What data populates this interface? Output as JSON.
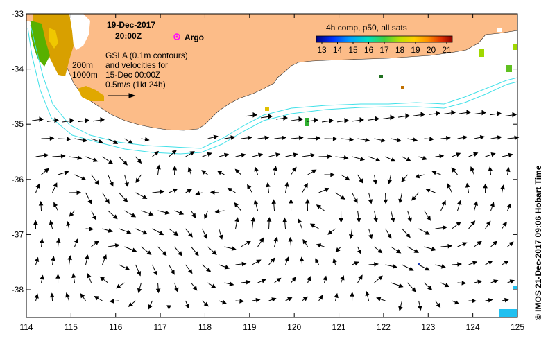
{
  "map": {
    "date": "19-Dec-2017",
    "time": "20:00Z",
    "argo_label": "Argo",
    "colorbar_title": "4h comp, p50, all sats",
    "colorbar_ticks": [
      "13",
      "14",
      "15",
      "16",
      "17",
      "18",
      "19",
      "20",
      "21"
    ],
    "contour_200": "200m",
    "contour_1000": "1000m",
    "gsla_line1": "GSLA (0.1m contours)",
    "gsla_line2": "and velocities for",
    "gsla_line3": "15-Dec 00:00Z",
    "scale_label": "0.5m/s (1kt 24h)",
    "credit": "© IMOS 21-Dec-2017 09:06 Hobart Time",
    "x_ticks": [
      "114",
      "115",
      "116",
      "117",
      "118",
      "119",
      "120",
      "121",
      "122",
      "123",
      "124",
      "125"
    ],
    "y_ticks": [
      "-33",
      "-34",
      "-35",
      "-36",
      "-37",
      "-38"
    ],
    "colors": {
      "land": "#fcbc88",
      "contour": "#40e0e8",
      "argo": "#ff00ff"
    }
  }
}
